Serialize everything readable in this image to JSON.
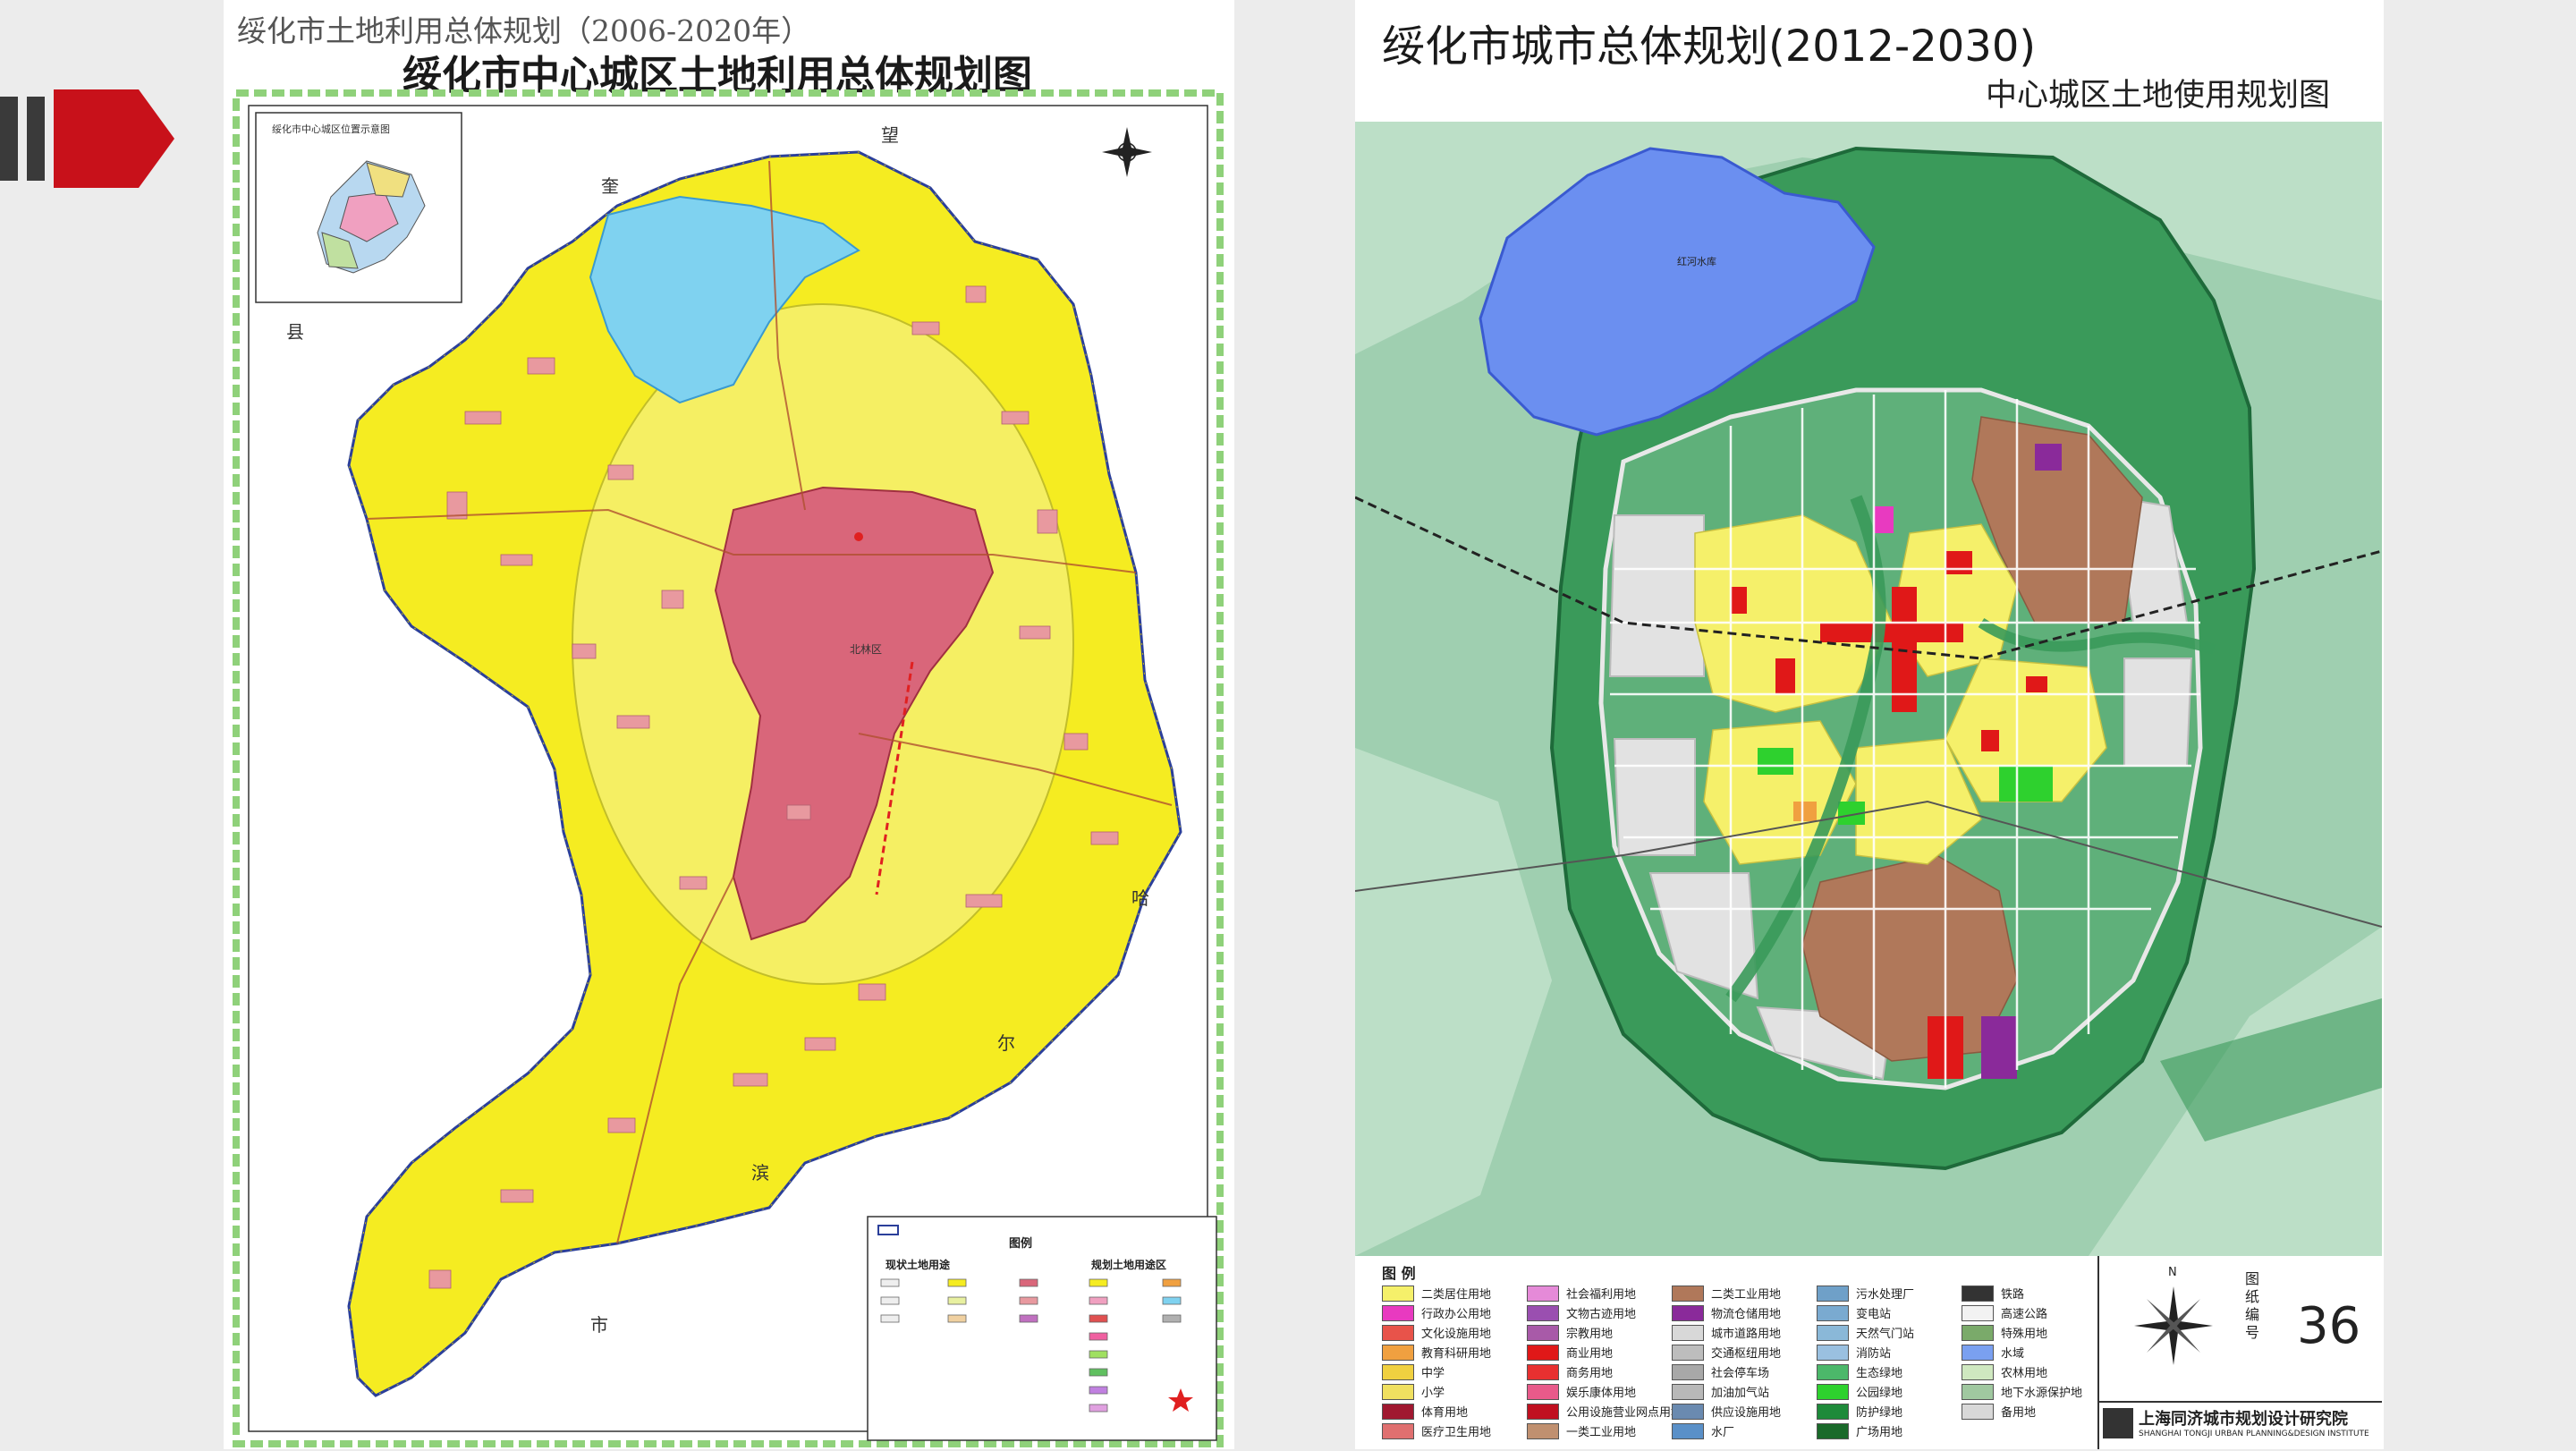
{
  "left_map": {
    "top_title": "绥化市土地利用总体规划（2006-2020年）",
    "main_title": "绥化市中心城区土地利用总体规划图",
    "inset_title": "绥化市中心城区位置示意图",
    "district_label": "北林区",
    "county_chars": [
      "望",
      "奎",
      "县",
      "哈",
      "尔",
      "滨",
      "市"
    ],
    "legend_title": "图例",
    "legend_current": "现状土地用途",
    "legend_planned": "规划土地用途区",
    "colors": {
      "farmland": "#f5ec21",
      "construction": "#d9667a",
      "water": "#7fd2f0",
      "border": "#2b3f9a",
      "frame": "#8fd17a",
      "rural": "#e8999f"
    }
  },
  "right_map": {
    "title": "绥化市城市总体规划(2012-2030)",
    "subtitle": "中心城区土地使用规划图",
    "reservoir_label": "红河水库",
    "legend_title": "图 例",
    "legend_items": [
      {
        "label": "二类居住用地",
        "color": "#f5f06a"
      },
      {
        "label": "社会福利用地",
        "color": "#e58ad8"
      },
      {
        "label": "二类工业用地",
        "color": "#b0785a"
      },
      {
        "label": "污水处理厂",
        "color": "#6fa0c8"
      },
      {
        "label": "铁路",
        "color": "#333333"
      },
      {
        "label": "行政办公用地",
        "color": "#e83ac0"
      },
      {
        "label": "文物古迹用地",
        "color": "#9a4fb0"
      },
      {
        "label": "物流仓储用地",
        "color": "#8a2a9a"
      },
      {
        "label": "变电站",
        "color": "#7aaad0"
      },
      {
        "label": "高速公路",
        "color": "#f2f2f2"
      },
      {
        "label": "文化设施用地",
        "color": "#e8534a"
      },
      {
        "label": "宗教用地",
        "color": "#a85aa8"
      },
      {
        "label": "城市道路用地",
        "color": "#d8d8d8"
      },
      {
        "label": "天然气门站",
        "color": "#8ab8d8"
      },
      {
        "label": "特殊用地",
        "color": "#7aaa6a"
      },
      {
        "label": "教育科研用地",
        "color": "#f0a040"
      },
      {
        "label": "商业用地",
        "color": "#e01818"
      },
      {
        "label": "交通枢纽用地",
        "color": "#bdbdbd"
      },
      {
        "label": "消防站",
        "color": "#9ac0e0"
      },
      {
        "label": "水域",
        "color": "#7aa0f0"
      },
      {
        "label": "中学",
        "color": "#f0d040"
      },
      {
        "label": "商务用地",
        "color": "#e83030"
      },
      {
        "label": "社会停车场",
        "color": "#a8a8a8"
      },
      {
        "label": "生态绿地",
        "color": "#4cb86a"
      },
      {
        "label": "农林用地",
        "color": "#cfe8c0"
      },
      {
        "label": "小学",
        "color": "#f0e060"
      },
      {
        "label": "娱乐康体用地",
        "color": "#e85a8a"
      },
      {
        "label": "加油加气站",
        "color": "#b8b8b8"
      },
      {
        "label": "公园绿地",
        "color": "#2ed12e"
      },
      {
        "label": "地下水源保护地",
        "color": "#a0c8a0"
      },
      {
        "label": "体育用地",
        "color": "#a01830"
      },
      {
        "label": "公用设施营业网点用地",
        "color": "#c01020"
      },
      {
        "label": "供应设施用地",
        "color": "#6a8ab0"
      },
      {
        "label": "防护绿地",
        "color": "#1e8a3a"
      },
      {
        "label": "备用地",
        "color": "#d8d8d8"
      },
      {
        "label": "医疗卫生用地",
        "color": "#e07070"
      },
      {
        "label": "一类工业用地",
        "color": "#c09070"
      },
      {
        "label": "水厂",
        "color": "#5a90c8"
      },
      {
        "label": "广场用地",
        "color": "#1a6a2a"
      }
    ],
    "drawing_label": "图纸编号",
    "drawing_number": "36",
    "institute_cn": "上海同济城市规划设计研究院",
    "institute_en": "SHANGHAI TONGJI URBAN PLANNING&DESIGN INSTITUTE",
    "colors": {
      "bg": "#9fcfb0",
      "ring": "#3a9a5a",
      "residential": "#f5f06a",
      "industrial": "#b0785a",
      "commercial": "#e01818",
      "reserve": "#e2e2e2",
      "reservoir": "#6b8ff0"
    }
  }
}
